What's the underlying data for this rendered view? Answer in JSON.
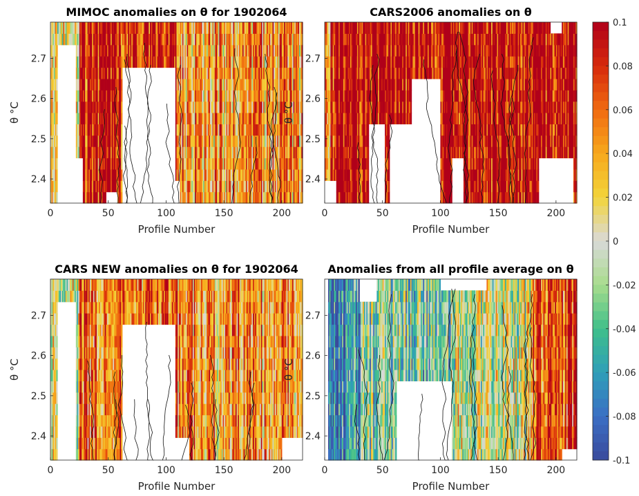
{
  "chart_data": [
    {
      "type": "heatmap",
      "title": "MIMOC anomalies on θ  for 1902064",
      "xlabel": "Profile Number",
      "ylabel": "θ °C",
      "xlim": [
        0,
        218
      ],
      "ylim": [
        2.34,
        2.79
      ],
      "xticks": [
        "0",
        "50",
        "100",
        "150",
        "200"
      ],
      "yticks": [
        "2.4",
        "2.5",
        "2.6",
        "2.7"
      ],
      "dominant_sign": "positive",
      "anomaly_range": [
        -0.1,
        0.1
      ]
    },
    {
      "type": "heatmap",
      "title": "CARS2006 anomalies on θ",
      "xlabel": "Profile Number",
      "ylabel": "θ °C",
      "xlim": [
        0,
        218
      ],
      "ylim": [
        2.34,
        2.79
      ],
      "xticks": [
        "0",
        "50",
        "100",
        "150",
        "200"
      ],
      "yticks": [
        "2.4",
        "2.5",
        "2.6",
        "2.7"
      ],
      "dominant_sign": "strongly positive",
      "anomaly_range": [
        -0.1,
        0.1
      ]
    },
    {
      "type": "heatmap",
      "title": "CARS NEW anomalies on θ for 1902064",
      "xlabel": "Profile Number",
      "ylabel": "θ °C",
      "xlim": [
        0,
        218
      ],
      "ylim": [
        2.34,
        2.79
      ],
      "xticks": [
        "0",
        "50",
        "100",
        "150",
        "200"
      ],
      "yticks": [
        "2.4",
        "2.5",
        "2.6",
        "2.7"
      ],
      "dominant_sign": "mixed, mostly positive",
      "anomaly_range": [
        -0.1,
        0.1
      ]
    },
    {
      "type": "heatmap",
      "title": "Anomalies from all profile average on θ",
      "xlabel": "Profile Number",
      "ylabel": "θ °C",
      "xlim": [
        0,
        218
      ],
      "ylim": [
        2.34,
        2.79
      ],
      "xticks": [
        "0",
        "50",
        "100",
        "150",
        "200"
      ],
      "yticks": [
        "2.4",
        "2.5",
        "2.6",
        "2.7"
      ],
      "dominant_sign": "negative early, positive late",
      "anomaly_range": [
        -0.1,
        0.1
      ]
    }
  ],
  "colorbar": {
    "min": -0.1,
    "max": 0.1,
    "ticks": [
      "0.1",
      "0.08",
      "0.06",
      "0.04",
      "0.02",
      "0",
      "-0.02",
      "-0.04",
      "-0.06",
      "-0.08",
      "-0.1"
    ],
    "colormap": "parula-to-red diverging",
    "colors": [
      "#3a4a9c",
      "#3b6fc4",
      "#2f9fb8",
      "#3fbf8a",
      "#a8dc8c",
      "#d9d9d9",
      "#f2d43a",
      "#f7a81c",
      "#f06a10",
      "#d62a0c",
      "#b0001a"
    ]
  }
}
